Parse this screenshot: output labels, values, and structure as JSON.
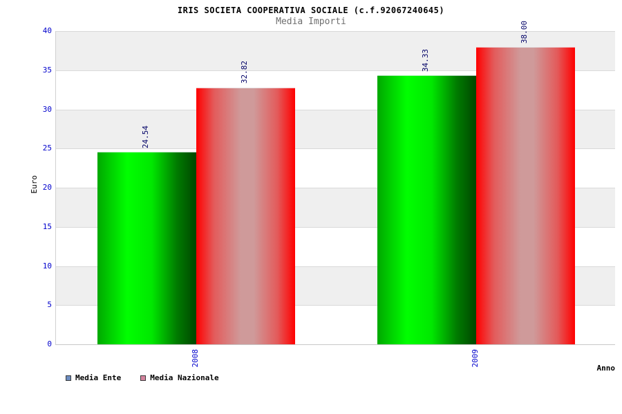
{
  "title": "IRIS SOCIETA COOPERATIVA SOCIALE (c.f.92067240645)",
  "subtitle": "Media Importi",
  "chart_data": {
    "type": "bar",
    "categories": [
      "2008",
      "2009"
    ],
    "series": [
      {
        "name": "Media Ente",
        "values": [
          24.54,
          34.33
        ],
        "legend_color": "#6d8dc0",
        "bar_gradient": [
          "#00a800 0%",
          "#00ff00 30%",
          "#00e800 55%",
          "#007c00 80%",
          "#004600 100%"
        ]
      },
      {
        "name": "Media Nazionale",
        "values": [
          32.82,
          38.0
        ],
        "legend_color": "#d4849e",
        "bar_gradient": [
          "#ff0000 0%",
          "#e35b5b 18%",
          "#cf9a9a 45%",
          "#cf9a9a 58%",
          "#e35b5b 82%",
          "#ff0000 100%"
        ]
      }
    ],
    "value_labels": [
      [
        "24.54",
        "32.82"
      ],
      [
        "34.33",
        "38.00"
      ]
    ],
    "xlabel": "Anno",
    "ylabel": "Euro",
    "ylim": [
      0,
      40
    ],
    "ytick_step": 5,
    "yticks": [
      0,
      5,
      10,
      15,
      20,
      25,
      30,
      35,
      40
    ],
    "grid": "horizontal, alternating gray bands",
    "legend_position": "bottom-left",
    "colors": {
      "ytick_label": "#0000cc",
      "xtick_label": "#0000cc",
      "value_label": "#000066",
      "band_gray": "#efefef",
      "gridline": "#d9d9d9",
      "subtitle_gray": "#6e6e6e"
    }
  }
}
